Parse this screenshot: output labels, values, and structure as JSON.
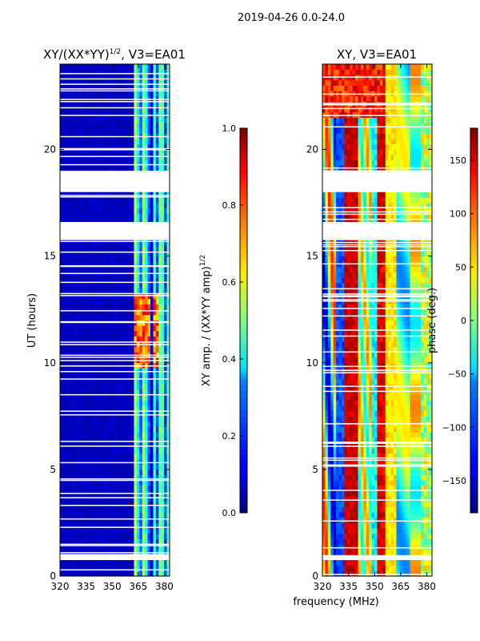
{
  "suptitle": "2019-04-26 0.0-24.0",
  "xlabel": "frequency (MHz)",
  "chart_data": [
    {
      "type": "heatmap",
      "title_main": "XY/(XX*YY)",
      "title_sup": "1/2",
      "title_rest": ", V3=EA01",
      "ylabel": "UT (hours)",
      "xlim": [
        320,
        383
      ],
      "ylim": [
        0,
        24
      ],
      "xticks": [
        320,
        335,
        350,
        365,
        380
      ],
      "yticks": [
        0,
        5,
        10,
        15,
        20
      ],
      "colorbar": {
        "label_main": "XY amp. / (XX*YY amp)",
        "label_sup": "1/2",
        "range": [
          0.0,
          1.0
        ],
        "ticks": [
          "0.0",
          "0.2",
          "0.4",
          "0.6",
          "0.8",
          "1.0"
        ],
        "colormap": "jet"
      },
      "data_summary": "mostly ~0.05 below 362 MHz; ~0.3-0.55 between 362-382 MHz; ~0.7-0.9 near 10-13 UT at 362-376 MHz",
      "gaps_ut": [
        [
          0.8,
          0.95
        ],
        [
          15.8,
          16.6
        ],
        [
          18.1,
          19.0
        ]
      ]
    },
    {
      "type": "heatmap",
      "title_main": "XY, V3=EA01",
      "title_sup": "",
      "title_rest": "",
      "ylabel": "",
      "xlim": [
        320,
        383
      ],
      "ylim": [
        0,
        24
      ],
      "xticks": [
        320,
        335,
        350,
        365,
        380
      ],
      "yticks": [
        0,
        5,
        10,
        15,
        20
      ],
      "colorbar": {
        "label_main": "phase (deg.)",
        "label_sup": "",
        "range": [
          -180,
          180
        ],
        "ticks": [
          "−150",
          "−100",
          "−50",
          "0",
          "50",
          "100",
          "150"
        ],
        "tick_values": [
          -150,
          -100,
          -50,
          0,
          50,
          100,
          150
        ],
        "colormap": "jet"
      },
      "data_summary": "phase varies with frequency: ~+150 near 335-340 MHz and 352-356 MHz, ~-150 near 330 MHz, ~0-50 near 360-375 MHz",
      "gaps_ut": [
        [
          0.8,
          0.95
        ],
        [
          15.8,
          16.6
        ],
        [
          18.1,
          19.0
        ]
      ]
    }
  ]
}
